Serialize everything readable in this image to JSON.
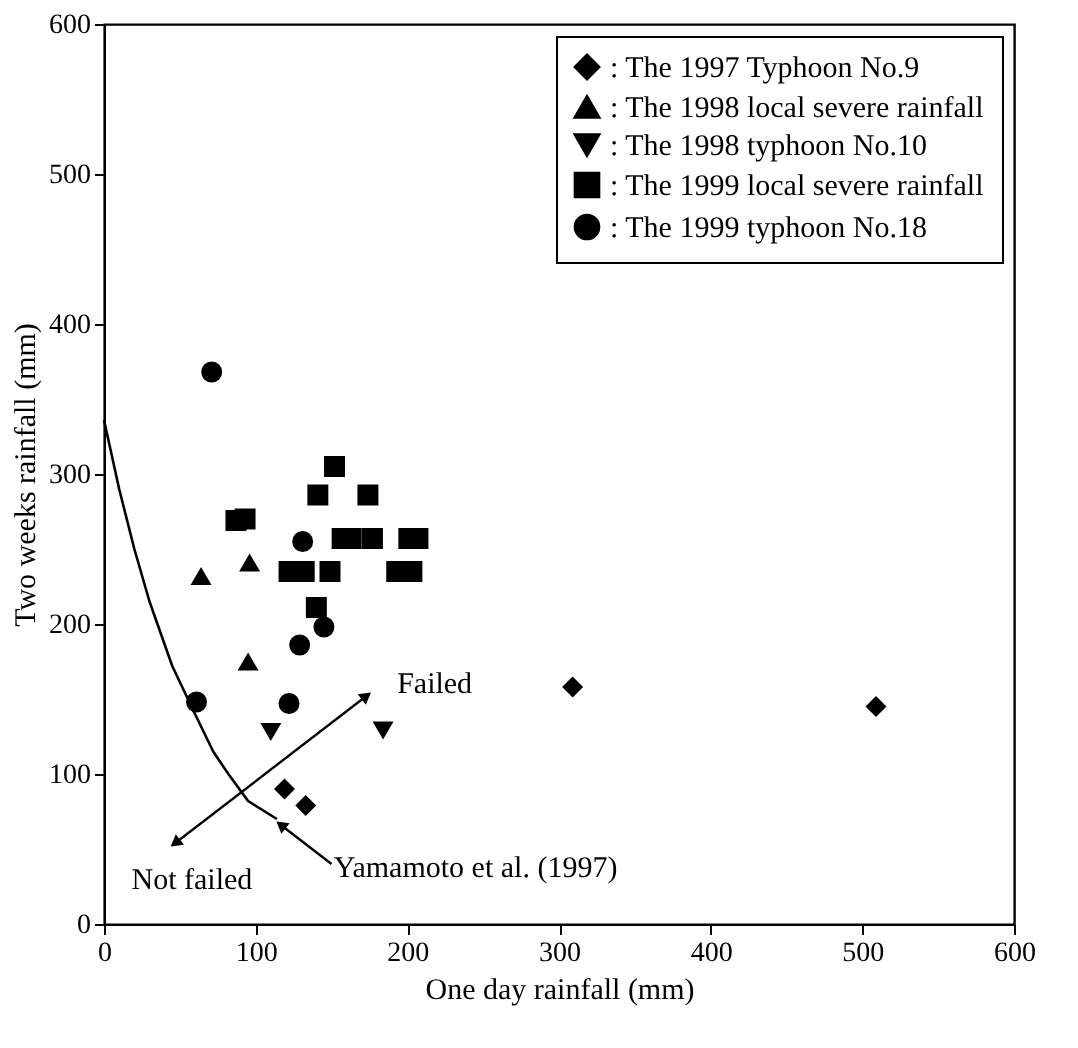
{
  "chart_data": {
    "type": "scatter",
    "xlabel": "One day rainfall (mm)",
    "ylabel": "Two weeks rainfall (mm)",
    "xlim": [
      0,
      600
    ],
    "ylim": [
      0,
      600
    ],
    "xticks": [
      0,
      100,
      200,
      300,
      400,
      500,
      600
    ],
    "yticks": [
      0,
      100,
      200,
      300,
      400,
      500,
      600
    ],
    "grid": false,
    "legend": "top right",
    "series": [
      {
        "name": ": The 1997 Typhoon No.9",
        "color": "#000000",
        "marker": "diamond",
        "x": [
          119,
          133,
          309,
          509
        ],
        "values": [
          90,
          79,
          158,
          145
        ]
      },
      {
        "name": ": The 1998 local severe rainfall",
        "color": "#000000",
        "marker": "triangle",
        "x": [
          64,
          96,
          95
        ],
        "values": [
          232,
          241,
          175
        ]
      },
      {
        "name": ": The 1998 typhoon No.10",
        "color": "#000000",
        "marker": "triangle-down",
        "x": [
          110,
          184
        ],
        "values": [
          128,
          129
        ]
      },
      {
        "name": ": The 1999 local severe rainfall",
        "color": "#000000",
        "marker": "square",
        "x": [
          152,
          141,
          174,
          87,
          93,
          157,
          163,
          177,
          201,
          207,
          122,
          132,
          149,
          193,
          203,
          140
        ],
        "values": [
          305,
          286,
          286,
          269,
          270,
          257,
          257,
          257,
          257,
          257,
          235,
          235,
          235,
          235,
          235,
          211
        ]
      },
      {
        "name": ": The 1999 typhoon No.18",
        "color": "#000000",
        "marker": "circle",
        "x": [
          71,
          61,
          122,
          129,
          131,
          145
        ],
        "values": [
          368,
          148,
          147,
          186,
          255,
          198
        ]
      },
      {
        "type": "line",
        "color": "#000000",
        "line_style": "solid",
        "x": [
          0,
          10,
          20,
          30,
          45,
          60,
          72,
          82,
          95,
          114
        ],
        "values": [
          336,
          290,
          250,
          215,
          172,
          140,
          115,
          100,
          82,
          70
        ]
      }
    ],
    "annotations": [
      "Failed",
      "Not failed",
      {
        "text": "Yamamoto et al. (1997)",
        "x": 114,
        "y": 70
      }
    ]
  }
}
